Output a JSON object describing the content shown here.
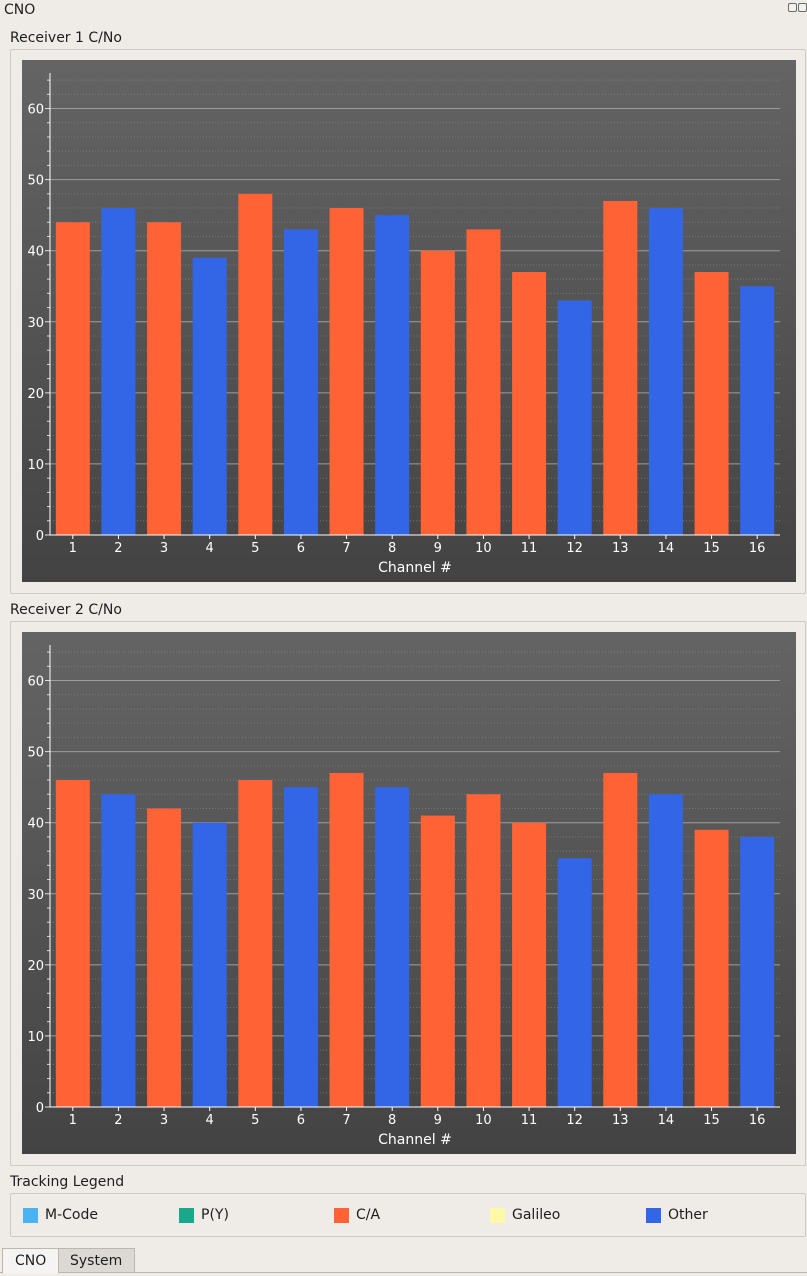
{
  "window": {
    "title": "CNO"
  },
  "charts": [
    {
      "group_title": "Receiver 1 C/No"
    },
    {
      "group_title": "Receiver 2 C/No"
    }
  ],
  "chart_data": [
    {
      "type": "bar",
      "title": "Receiver 1 C/No",
      "xlabel": "Channel #",
      "ylabel": "",
      "ylim": [
        0,
        65
      ],
      "yticks": [
        0,
        10,
        20,
        30,
        40,
        50,
        60
      ],
      "categories": [
        "1",
        "2",
        "3",
        "4",
        "5",
        "6",
        "7",
        "8",
        "9",
        "10",
        "11",
        "12",
        "13",
        "14",
        "15",
        "16"
      ],
      "values": [
        44,
        46,
        44,
        39,
        48,
        43,
        46,
        45,
        40,
        43,
        37,
        33,
        47,
        46,
        37,
        35
      ],
      "tracking": [
        "C/A",
        "Other",
        "C/A",
        "Other",
        "C/A",
        "Other",
        "C/A",
        "Other",
        "C/A",
        "C/A",
        "C/A",
        "Other",
        "C/A",
        "Other",
        "C/A",
        "Other"
      ],
      "grid": true
    },
    {
      "type": "bar",
      "title": "Receiver 2 C/No",
      "xlabel": "Channel #",
      "ylabel": "",
      "ylim": [
        0,
        65
      ],
      "yticks": [
        0,
        10,
        20,
        30,
        40,
        50,
        60
      ],
      "categories": [
        "1",
        "2",
        "3",
        "4",
        "5",
        "6",
        "7",
        "8",
        "9",
        "10",
        "11",
        "12",
        "13",
        "14",
        "15",
        "16"
      ],
      "values": [
        46,
        44,
        42,
        40,
        46,
        45,
        47,
        45,
        41,
        44,
        40,
        35,
        47,
        44,
        39,
        38
      ],
      "tracking": [
        "C/A",
        "Other",
        "C/A",
        "Other",
        "C/A",
        "Other",
        "C/A",
        "Other",
        "C/A",
        "C/A",
        "C/A",
        "Other",
        "C/A",
        "Other",
        "C/A",
        "Other"
      ],
      "grid": true
    }
  ],
  "legend": {
    "title": "Tracking Legend",
    "items": [
      {
        "label": "M-Code",
        "color": "#4ab3f4"
      },
      {
        "label": "P(Y)",
        "color": "#19a88a"
      },
      {
        "label": "C/A",
        "color": "#ff6235"
      },
      {
        "label": "Galileo",
        "color": "#fdf9a6"
      },
      {
        "label": "Other",
        "color": "#3366e6"
      }
    ]
  },
  "tabs": [
    {
      "label": "CNO",
      "active": true
    },
    {
      "label": "System",
      "active": false
    }
  ]
}
